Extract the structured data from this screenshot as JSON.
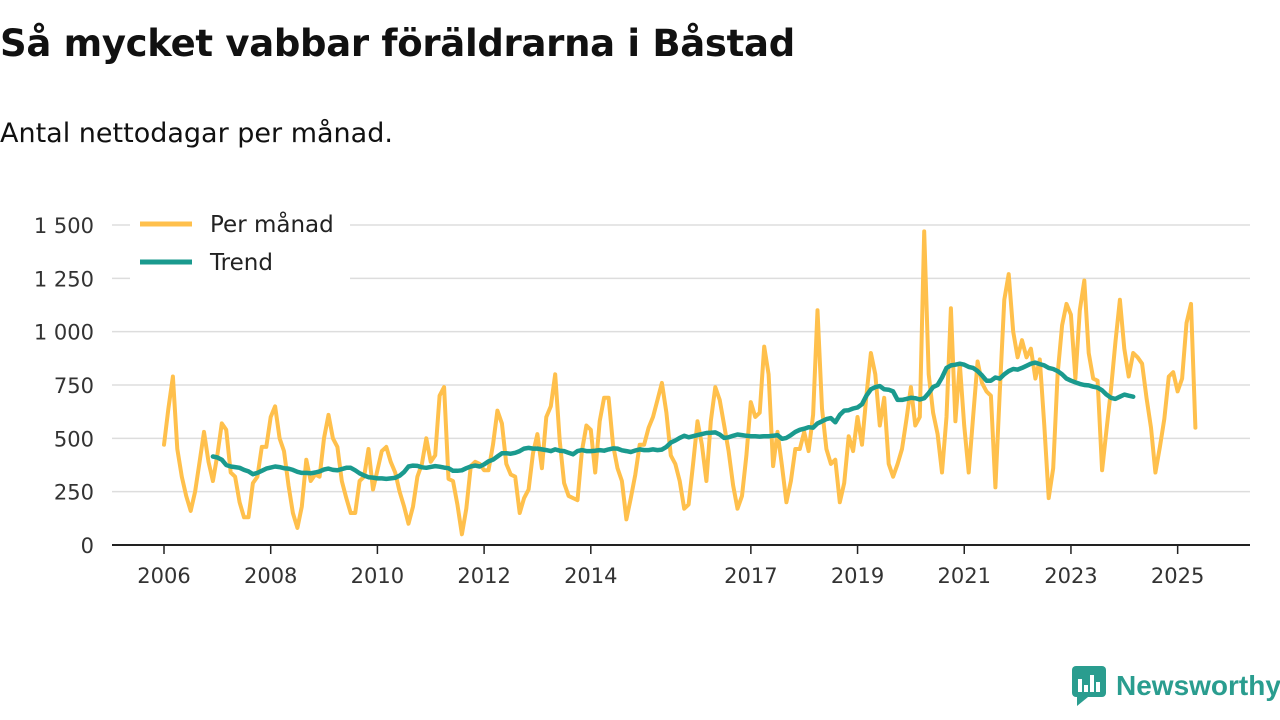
{
  "header": {
    "title": "Så mycket vabbar föräldrarna i Båstad",
    "subtitle": "Antal nettodagar per månad."
  },
  "brand": {
    "name": "Newsworthy",
    "color": "#2a9d8f"
  },
  "chart_data": {
    "type": "line",
    "xlabel": "",
    "ylabel": "",
    "xlim": [
      2006,
      2025.7
    ],
    "ylim": [
      0,
      1500
    ],
    "yticks": [
      0,
      250,
      500,
      750,
      1000,
      1250,
      1500
    ],
    "ytick_labels": [
      "0",
      "250",
      "500",
      "750",
      "1 000",
      "1 250",
      "1 500"
    ],
    "xticks": [
      2006,
      2008,
      2010,
      2012,
      2014,
      2017,
      2019,
      2021,
      2023,
      2025
    ],
    "xtick_labels": [
      "2006",
      "2008",
      "2010",
      "2012",
      "2014",
      "2017",
      "2019",
      "2021",
      "2023",
      "2025"
    ],
    "grid": true,
    "legend_position": "top-left",
    "series": [
      {
        "name": "Per månad",
        "color": "#ffc04c",
        "x_start": 2006.0,
        "step": 0.0833333,
        "values": [
          470,
          640,
          790,
          450,
          320,
          230,
          160,
          250,
          390,
          530,
          390,
          300,
          420,
          570,
          540,
          340,
          320,
          200,
          130,
          130,
          290,
          320,
          460,
          460,
          600,
          650,
          500,
          440,
          280,
          150,
          80,
          180,
          400,
          300,
          330,
          320,
          500,
          610,
          500,
          460,
          300,
          220,
          150,
          150,
          300,
          320,
          450,
          260,
          350,
          440,
          460,
          390,
          340,
          250,
          180,
          100,
          180,
          320,
          380,
          500,
          390,
          420,
          700,
          740,
          310,
          300,
          190,
          50,
          170,
          370,
          390,
          380,
          350,
          350,
          470,
          630,
          570,
          380,
          330,
          320,
          150,
          220,
          260,
          430,
          520,
          360,
          600,
          650,
          800,
          490,
          290,
          230,
          220,
          210,
          440,
          560,
          540,
          340,
          580,
          690,
          690,
          470,
          360,
          300,
          120,
          220,
          330,
          470,
          470,
          550,
          600,
          680,
          760,
          620,
          420,
          380,
          300,
          170,
          190,
          380,
          580,
          470,
          300,
          580,
          740,
          680,
          560,
          440,
          280,
          170,
          230,
          420,
          670,
          600,
          620,
          930,
          800,
          370,
          530,
          370,
          200,
          300,
          450,
          450,
          530,
          440,
          610,
          1100,
          640,
          450,
          380,
          400,
          200,
          290,
          510,
          440,
          600,
          470,
          700,
          900,
          800,
          560,
          690,
          380,
          320,
          380,
          450,
          590,
          740,
          560,
          600,
          1470,
          800,
          620,
          520,
          340,
          600,
          1110,
          580,
          850,
          560,
          340,
          600,
          860,
          760,
          720,
          700,
          270,
          720,
          1150,
          1270,
          1000,
          880,
          960,
          880,
          920,
          780,
          870,
          560,
          220,
          360,
          800,
          1030,
          1130,
          1080,
          780,
          1100,
          1240,
          900,
          780,
          770,
          350,
          540,
          730,
          950,
          1150,
          920,
          790,
          900,
          880,
          850,
          690,
          550,
          340,
          460,
          590,
          790,
          810,
          720,
          780,
          1040,
          1130,
          550
        ],
        "label": "Per månad"
      },
      {
        "name": "Trend",
        "color": "#1a9a8e",
        "x_start": 2006.9167,
        "step": 0.0833333,
        "values": [
          415,
          410,
          400,
          375,
          368,
          365,
          362,
          352,
          345,
          332,
          338,
          348,
          358,
          363,
          368,
          365,
          360,
          358,
          352,
          343,
          338,
          338,
          336,
          340,
          345,
          354,
          358,
          352,
          350,
          356,
          362,
          362,
          350,
          336,
          326,
          318,
          316,
          312,
          312,
          310,
          312,
          315,
          325,
          342,
          368,
          372,
          371,
          364,
          362,
          366,
          370,
          367,
          363,
          360,
          348,
          348,
          350,
          360,
          368,
          372,
          368,
          378,
          392,
          400,
          415,
          430,
          430,
          428,
          432,
          440,
          452,
          455,
          452,
          452,
          448,
          445,
          440,
          448,
          442,
          440,
          432,
          425,
          440,
          445,
          440,
          440,
          442,
          445,
          442,
          448,
          453,
          452,
          444,
          440,
          436,
          443,
          448,
          445,
          445,
          448,
          445,
          447,
          460,
          480,
          490,
          502,
          512,
          505,
          510,
          515,
          520,
          525,
          526,
          528,
          518,
          502,
          505,
          512,
          518,
          515,
          512,
          510,
          510,
          508,
          510,
          510,
          512,
          515,
          498,
          502,
          515,
          530,
          540,
          545,
          552,
          550,
          570,
          580,
          590,
          595,
          575,
          610,
          630,
          632,
          640,
          645,
          660,
          700,
          730,
          740,
          745,
          730,
          728,
          720,
          680,
          680,
          685,
          690,
          688,
          682,
          688,
          712,
          740,
          750,
          785,
          830,
          842,
          845,
          850,
          845,
          835,
          830,
          815,
          795,
          770,
          770,
          785,
          780,
          800,
          815,
          825,
          822,
          830,
          840,
          850,
          855,
          848,
          842,
          830,
          825,
          815,
          800,
          780,
          770,
          762,
          755,
          750,
          748,
          742,
          738,
          725,
          705,
          690,
          685,
          695,
          705,
          700,
          695
        ]
      }
    ]
  }
}
